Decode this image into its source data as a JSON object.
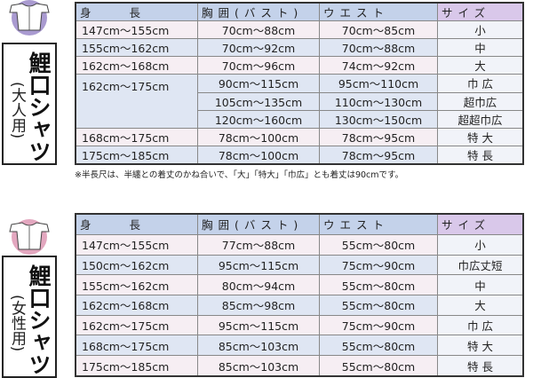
{
  "colors": {
    "adult_icon": "#a99ad0",
    "women_icon": "#e3a7bf",
    "header": "#c4d2ea",
    "size_header": "#d9c8ea",
    "pink_row": "#f6eef3",
    "blue_row": "#dfe6f3"
  },
  "adult": {
    "icon": "shirt-icon",
    "title": "鯉口シャツ",
    "subtitle": "(大人用)",
    "headers": [
      "身　　長",
      "胸囲(バスト)",
      "ウエスト",
      "サイズ"
    ],
    "rows": [
      {
        "height": "147cm～155cm",
        "chest": "70cm～88cm",
        "waist": "70cm～85cm",
        "size": "小"
      },
      {
        "height": "155cm～162cm",
        "chest": "70cm～92cm",
        "waist": "70cm～88cm",
        "size": "中"
      },
      {
        "height": "162cm～168cm",
        "chest": "70cm～96cm",
        "waist": "74cm～92cm",
        "size": "大"
      },
      {
        "height": "162cm～175cm",
        "chest": "90cm～115cm",
        "waist": "95cm～110cm",
        "size": "巾 広"
      },
      {
        "chest": "105cm～135cm",
        "waist": "110cm～130cm",
        "size": "超巾広"
      },
      {
        "chest": "120cm～160cm",
        "waist": "130cm～150cm",
        "size": "超超巾広"
      },
      {
        "height": "168cm～175cm",
        "chest": "78cm～100cm",
        "waist": "78cm～95cm",
        "size": "特 大"
      },
      {
        "height": "175cm～185cm",
        "chest": "78cm～100cm",
        "waist": "78cm～95cm",
        "size": "特 長"
      }
    ],
    "note": "※半長尺は、半纏との着丈のかね合いで、「大」「特大」「巾広」とも着丈は90cmです。"
  },
  "women": {
    "icon": "shirt-icon",
    "title": "鯉口シャツ",
    "subtitle": "(女性用)",
    "headers": [
      "身　　長",
      "胸囲(バスト)",
      "ウエスト",
      "サイズ"
    ],
    "rows": [
      {
        "height": "147cm～155cm",
        "chest": "77cm～88cm",
        "waist": "55cm～80cm",
        "size": "小"
      },
      {
        "height": "150cm～162cm",
        "chest": "95cm～115cm",
        "waist": "75cm～90cm",
        "size": "巾広丈短"
      },
      {
        "height": "155cm～162cm",
        "chest": "80cm～94cm",
        "waist": "55cm～80cm",
        "size": "中"
      },
      {
        "height": "162cm～168cm",
        "chest": "85cm～98cm",
        "waist": "55cm～80cm",
        "size": "大"
      },
      {
        "height": "162cm～175cm",
        "chest": "95cm～115cm",
        "waist": "75cm～90cm",
        "size": "巾 広"
      },
      {
        "height": "168cm～175cm",
        "chest": "85cm～103cm",
        "waist": "55cm～80cm",
        "size": "特 大"
      },
      {
        "height": "175cm～185cm",
        "chest": "85cm～103cm",
        "waist": "55cm～80cm",
        "size": "特 長"
      }
    ]
  }
}
